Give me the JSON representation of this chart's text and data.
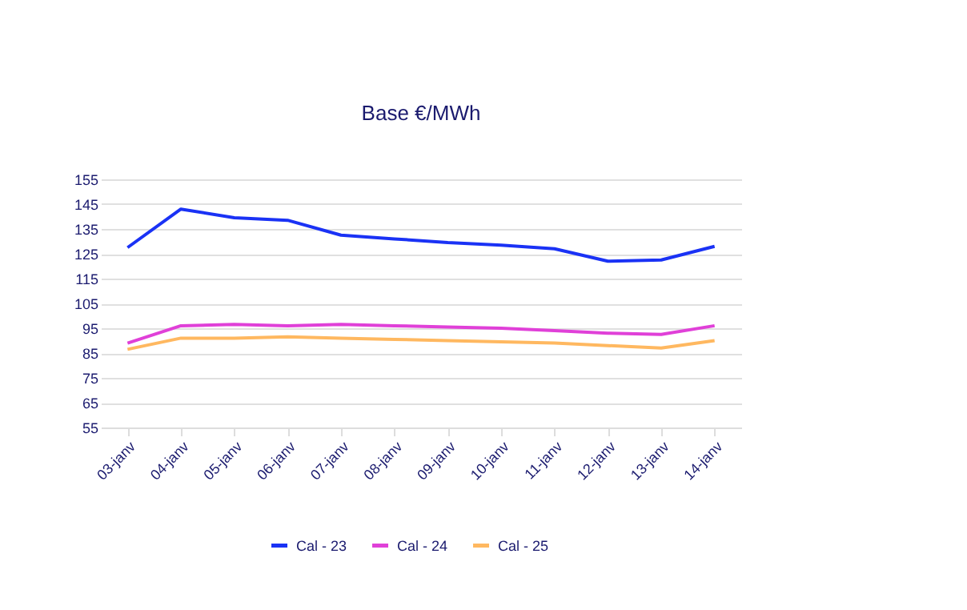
{
  "chart_data": {
    "type": "line",
    "title": "Base €/MWh",
    "categories": [
      "03-janv",
      "04-janv",
      "05-janv",
      "06-janv",
      "07-janv",
      "08-janv",
      "09-janv",
      "10-janv",
      "11-janv",
      "12-janv",
      "13-janv",
      "14-janv"
    ],
    "series": [
      {
        "name": "Cal - 23",
        "color": "#1a32f5",
        "values": [
          127.5,
          143,
          139.5,
          138.5,
          132.5,
          131,
          129.5,
          128.5,
          127,
          122,
          122.5,
          128
        ]
      },
      {
        "name": "Cal - 24",
        "color": "#e040d8",
        "values": [
          89,
          96,
          96.5,
          96,
          96.5,
          96,
          95.5,
          95,
          94,
          93,
          92.5,
          96
        ]
      },
      {
        "name": "Cal - 25",
        "color": "#ffb860",
        "values": [
          86.5,
          91,
          91,
          91.5,
          91,
          90.5,
          90,
          89.5,
          89,
          88,
          87,
          90
        ]
      }
    ],
    "ylim": [
      55,
      155
    ],
    "yticks": [
      55,
      65,
      75,
      85,
      95,
      105,
      115,
      125,
      135,
      145,
      155
    ],
    "grid": "y",
    "legend": "bottom",
    "marker": "none",
    "line_style": "solid"
  }
}
